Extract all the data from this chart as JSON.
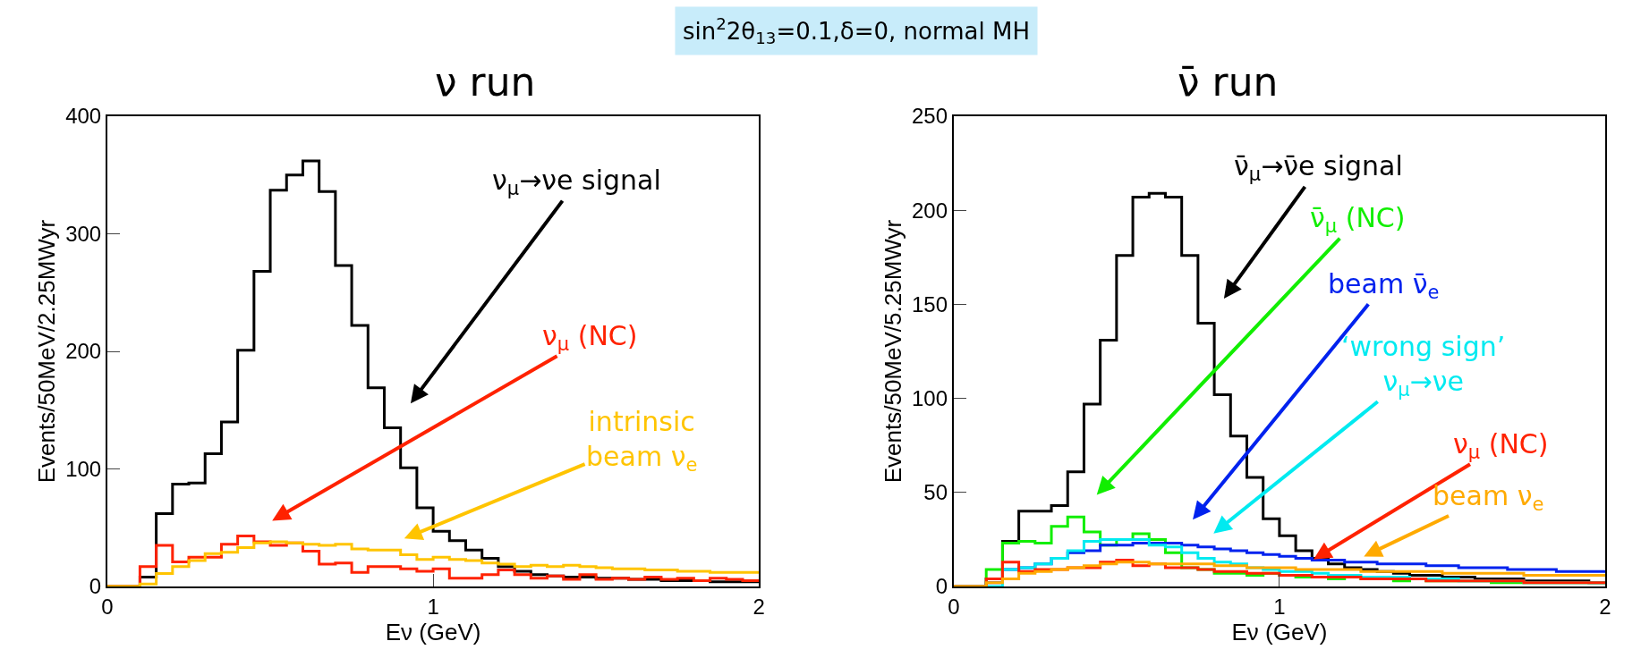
{
  "chart_data": [
    {
      "type": "histogram",
      "title": "ν run",
      "xlabel": "Eν (GeV)",
      "ylabel": "Events/50MeV/2.25MWyr",
      "annotations": [
        "sin$^{2}$2θ$_{13}$=0.1,δ=0, normal MH"
      ],
      "bins": [
        0,
        0.05,
        0.1,
        0.15,
        0.2,
        0.25,
        0.3,
        0.35,
        0.4,
        0.45,
        0.5,
        0.55,
        0.6,
        0.65,
        0.7,
        0.75,
        0.8,
        0.85,
        0.9,
        0.95,
        1.0,
        1.05,
        1.1,
        1.15,
        1.2,
        1.25,
        1.3,
        1.35,
        1.4,
        1.45,
        1.5,
        1.55,
        1.6,
        1.65,
        1.7,
        1.75,
        1.8,
        1.85,
        1.9,
        1.95,
        2.0
      ],
      "xlim": [
        0,
        2
      ],
      "xticks": [
        0,
        1,
        2
      ],
      "ylim": [
        0,
        400
      ],
      "yticks": [
        0,
        100,
        200,
        300,
        400
      ],
      "grid": false,
      "legend": false,
      "series": [
        {
          "name": "ν$_{μ}$→νe signal",
          "color": "#000000",
          "values": [
            0,
            0,
            8,
            62,
            87,
            88,
            113,
            140,
            201,
            268,
            337,
            350,
            362,
            336,
            273,
            222,
            169,
            135,
            101,
            67,
            47,
            39,
            31,
            24,
            17,
            13,
            10,
            9,
            8,
            8,
            7,
            7,
            6,
            6,
            5,
            5,
            5,
            4,
            4,
            4
          ]
        },
        {
          "name": "ν$_{μ}$ (NC)",
          "color": "#ff2200",
          "values": [
            0,
            0,
            17,
            35,
            21,
            25,
            25,
            36,
            43,
            38,
            35,
            37,
            30,
            19,
            20,
            12,
            17,
            17,
            15,
            13,
            15,
            7,
            7,
            10,
            14,
            10,
            7,
            9,
            6,
            10,
            6,
            7,
            6,
            8,
            6,
            7,
            5,
            7,
            6,
            5
          ]
        },
        {
          "name": "intrinsic\nbeam ν$_{e}$",
          "color": "#ffc400",
          "values": [
            0,
            0,
            2,
            11,
            17,
            22,
            28,
            29,
            33,
            37,
            38,
            37,
            36,
            35,
            36,
            32,
            31,
            31,
            27,
            23,
            25,
            23,
            22,
            20,
            19,
            17,
            18,
            17,
            18,
            17,
            16,
            15,
            15,
            14,
            14,
            13,
            13,
            12,
            12,
            12
          ]
        }
      ]
    },
    {
      "type": "histogram",
      "title": "ν̄ run",
      "xlabel": "Eν (GeV)",
      "ylabel": "Events/50MeV/5.25MWyr",
      "bins": [
        0,
        0.05,
        0.1,
        0.15,
        0.2,
        0.25,
        0.3,
        0.35,
        0.4,
        0.45,
        0.5,
        0.55,
        0.6,
        0.65,
        0.7,
        0.75,
        0.8,
        0.85,
        0.9,
        0.95,
        1.0,
        1.05,
        1.1,
        1.15,
        1.2,
        1.25,
        1.3,
        1.35,
        1.4,
        1.45,
        1.5,
        1.55,
        1.6,
        1.65,
        1.7,
        1.75,
        1.8,
        1.85,
        1.9,
        1.95,
        2.0
      ],
      "xlim": [
        0,
        2
      ],
      "xticks": [
        0,
        1,
        2
      ],
      "ylim": [
        0,
        250
      ],
      "yticks": [
        0,
        50,
        100,
        150,
        200,
        250
      ],
      "grid": false,
      "legend": false,
      "series": [
        {
          "name": "ν̄$_{μ}$→ν̄e signal",
          "color": "#000000",
          "values": [
            0,
            0,
            4,
            24,
            40,
            40,
            43,
            61,
            97,
            131,
            176,
            207,
            209,
            207,
            176,
            140,
            102,
            80,
            58,
            36,
            27,
            19,
            15,
            12,
            10,
            9,
            8,
            7,
            6,
            6,
            5,
            5,
            4,
            4,
            4,
            3,
            3,
            3,
            3,
            2
          ]
        },
        {
          "name": "ν̄$_{μ}$ (NC)",
          "color": "#11ee00",
          "values": [
            0,
            0,
            9,
            23,
            24,
            23,
            32,
            37,
            29,
            22,
            25,
            28,
            25,
            18,
            10,
            9,
            7,
            7,
            6,
            7,
            6,
            5,
            5,
            4,
            5,
            4,
            4,
            3,
            4,
            3,
            3,
            3,
            3,
            2,
            2,
            2,
            2,
            2,
            2,
            2
          ]
        },
        {
          "name": "beam ν̄$_{e}$",
          "color": "#0022ee",
          "values": [
            0,
            0,
            2,
            9,
            10,
            12,
            15,
            18,
            19,
            22,
            22,
            23,
            23,
            23,
            22,
            21,
            20,
            19,
            18,
            17,
            16,
            15,
            14,
            14,
            13,
            13,
            12,
            12,
            12,
            11,
            11,
            10,
            10,
            10,
            9,
            9,
            9,
            8,
            8,
            8
          ]
        },
        {
          "name": "‘wrong sign’\nν$_{μ}$→νe",
          "color": "#00eaf0",
          "values": [
            0,
            0,
            0,
            9,
            10,
            12,
            15,
            19,
            24,
            25,
            25,
            25,
            22,
            21,
            18,
            15,
            13,
            12,
            10,
            9,
            8,
            8,
            7,
            6,
            6,
            5,
            5,
            5,
            4,
            4,
            4,
            3,
            3,
            3,
            3,
            2,
            2,
            2,
            2,
            2
          ]
        },
        {
          "name": "ν$_{μ}$ (NC)",
          "color": "#ff2200",
          "values": [
            0,
            0,
            4,
            13,
            8,
            9,
            9,
            10,
            10,
            13,
            14,
            11,
            12,
            10,
            10,
            9,
            8,
            8,
            7,
            7,
            6,
            6,
            5,
            5,
            5,
            4,
            4,
            4,
            4,
            3,
            3,
            3,
            3,
            3,
            3,
            2,
            2,
            2,
            2,
            2
          ]
        },
        {
          "name": "beam ν$_{e}$",
          "color": "#ffaa00",
          "values": [
            0,
            0,
            2,
            4,
            7,
            8,
            9,
            10,
            11,
            12,
            13,
            13,
            12,
            12,
            12,
            12,
            11,
            11,
            10,
            10,
            10,
            9,
            9,
            9,
            9,
            8,
            8,
            8,
            8,
            8,
            7,
            7,
            7,
            7,
            7,
            6,
            6,
            6,
            6,
            6
          ]
        }
      ]
    }
  ]
}
